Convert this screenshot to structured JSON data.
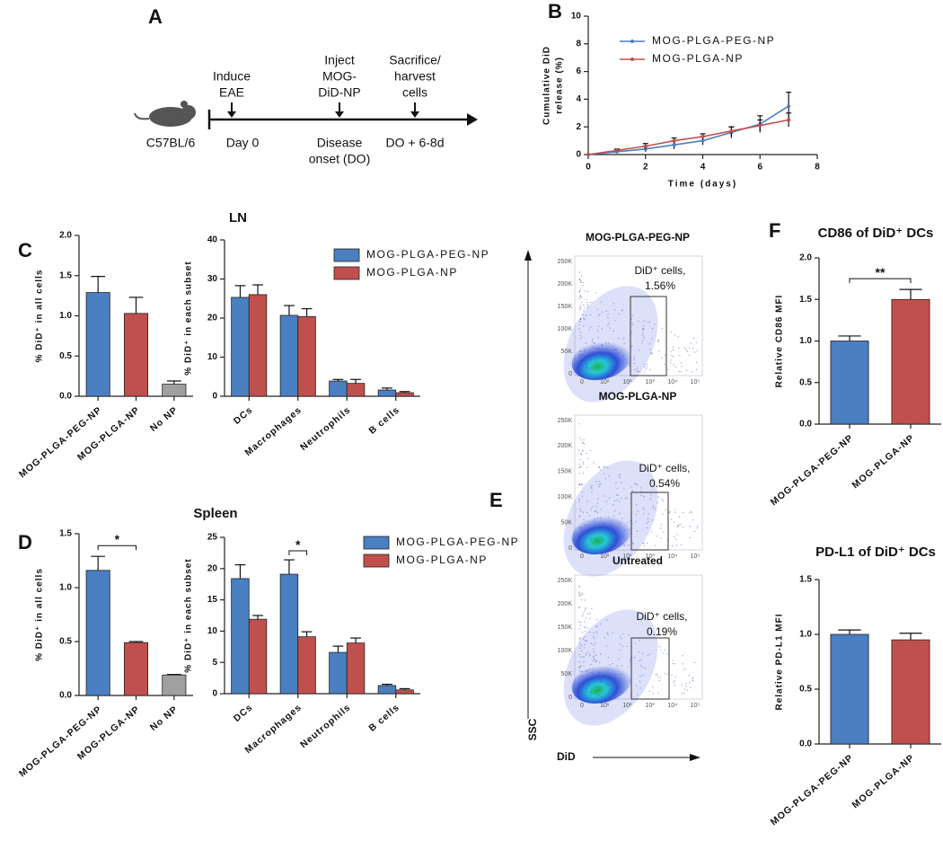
{
  "timeline": {
    "panel_label": "A",
    "strain": "C57BL/6",
    "events": [
      {
        "above": [
          "Induce",
          "EAE"
        ],
        "below": [
          "Day 0"
        ]
      },
      {
        "above": [
          "Inject",
          "MOG-",
          "DiD-NP"
        ],
        "below": [
          "Disease",
          "onset (DO)"
        ]
      },
      {
        "above": [
          "Sacrifice/",
          "harvest",
          "cells"
        ],
        "below": [
          "DO + 6-8d"
        ]
      }
    ]
  },
  "flow": {
    "panel_label": "E",
    "y_label": "SSC",
    "x_label": "DiD",
    "yticks": [
      "0",
      "50K",
      "100K",
      "150K",
      "200K",
      "250K"
    ],
    "xticks": [
      "0",
      "10¹",
      "10²",
      "10³",
      "10⁴",
      "10⁵"
    ],
    "panels": [
      {
        "title": "MOG-PLGA-PEG-NP",
        "gate_label": "DiD⁺ cells,",
        "gate_value": "1.56%"
      },
      {
        "title": "MOG-PLGA-NP",
        "gate_label": "DiD⁺ cells,",
        "gate_value": "0.54%"
      },
      {
        "title": "Untreated",
        "gate_label": "DiD⁺ cells,",
        "gate_value": "0.19%"
      }
    ]
  },
  "chart_data": [
    {
      "type": "line",
      "panel_label": "B",
      "x_label": "Time (days)",
      "y_label": [
        "Cumulative DiD",
        "release (%)"
      ],
      "x": [
        0,
        1,
        2,
        3,
        4,
        5,
        6,
        7
      ],
      "series": [
        {
          "name": "MOG-PLGA-PEG-NP",
          "color": "#4a7fc1",
          "values": [
            0,
            0.2,
            0.4,
            0.7,
            1.0,
            1.6,
            2.2,
            3.5
          ],
          "errors": [
            0,
            0.1,
            0.2,
            0.3,
            0.3,
            0.4,
            0.6,
            1.0
          ]
        },
        {
          "name": "MOG-PLGA-NP",
          "color": "#c0504d",
          "values": [
            0,
            0.3,
            0.6,
            1.0,
            1.3,
            1.7,
            2.1,
            2.5
          ],
          "errors": [
            0,
            0.1,
            0.2,
            0.2,
            0.2,
            0.3,
            0.4,
            0.5
          ]
        }
      ],
      "xlim": [
        0,
        8
      ],
      "xticks": [
        0,
        2,
        4,
        6,
        8
      ],
      "ylim": [
        0,
        10
      ],
      "yticks": [
        0,
        2,
        4,
        6,
        8,
        10
      ]
    },
    {
      "type": "bar",
      "panel_label": "C",
      "section_title": "LN",
      "y_label": "% DiD⁺ in all cells",
      "categories": [
        "MOG-PLGA-PEG-NP",
        "MOG-PLGA-NP",
        "No NP"
      ],
      "values": [
        1.29,
        1.03,
        0.15
      ],
      "errors": [
        0.2,
        0.2,
        0.04
      ],
      "colors": [
        "#4a7fc1",
        "#c0504d",
        "#a0a0a0"
      ],
      "ylim": [
        0,
        2
      ],
      "yticks": [
        {
          "value": 0,
          "label": "0.0"
        },
        0.5,
        {
          "value": 1,
          "label": "1.0"
        },
        1.5,
        {
          "value": 2,
          "label": "2.0"
        }
      ]
    },
    {
      "type": "grouped_bar",
      "y_label": "% DiD⁺ in each subset",
      "categories": [
        "DCs",
        "Macrophages",
        "Neutrophils",
        "B cells"
      ],
      "series": [
        {
          "name": "MOG-PLGA-PEG-NP",
          "color": "#4a7fc1",
          "values": [
            25.3,
            20.7,
            3.9,
            1.6
          ],
          "errors": [
            3,
            2.5,
            0.4,
            0.5
          ]
        },
        {
          "name": "MOG-PLGA-NP",
          "color": "#c0504d",
          "values": [
            26,
            20.4,
            3.3,
            0.9
          ],
          "errors": [
            2.5,
            2,
            1,
            0.3
          ]
        }
      ],
      "ylim": [
        0,
        40
      ],
      "yticks": [
        0,
        10,
        20,
        30,
        40
      ]
    },
    {
      "type": "bar",
      "panel_label": "D",
      "section_title": "Spleen",
      "y_label": "% DiD⁺ in all cells",
      "categories": [
        "MOG-PLGA-PEG-NP",
        "MOG-PLGA-NP",
        "No NP"
      ],
      "values": [
        1.16,
        0.49,
        0.19
      ],
      "errors": [
        0.13,
        0.01,
        0.005
      ],
      "colors": [
        "#4a7fc1",
        "#c0504d",
        "#a0a0a0"
      ],
      "ylim": [
        0,
        1.5
      ],
      "yticks": [
        {
          "value": 0,
          "label": "0.0"
        },
        0.5,
        {
          "value": 1,
          "label": "1.0"
        },
        1.5
      ],
      "annotation": {
        "text": "*",
        "between": [
          "MOG-PLGA-PEG-NP",
          "MOG-PLGA-NP"
        ]
      }
    },
    {
      "type": "grouped_bar",
      "y_label": "% DiD⁺ in each subset",
      "categories": [
        "DCs",
        "Macrophages",
        "Neutrophils",
        "B cells"
      ],
      "series": [
        {
          "name": "MOG-PLGA-PEG-NP",
          "color": "#4a7fc1",
          "values": [
            18.4,
            19.1,
            6.6,
            1.3
          ],
          "errors": [
            2.2,
            2.3,
            1,
            0.2
          ]
        },
        {
          "name": "MOG-PLGA-NP",
          "color": "#c0504d",
          "values": [
            11.9,
            9.1,
            8.1,
            0.6
          ],
          "errors": [
            0.6,
            0.8,
            0.8,
            0.2
          ]
        }
      ],
      "ylim": [
        0,
        25
      ],
      "yticks": [
        0,
        5,
        10,
        15,
        20,
        25
      ],
      "annotation": {
        "text": "*",
        "category": "Macrophages"
      }
    },
    {
      "type": "bar",
      "panel_label": "F",
      "title": "CD86 of DiD⁺ DCs",
      "y_label": "Relative CD86 MFI",
      "categories": [
        "MOG-PLGA-PEG-NP",
        "MOG-PLGA-NP"
      ],
      "values": [
        1.0,
        1.5
      ],
      "errors": [
        0.06,
        0.12
      ],
      "colors": [
        "#4a7fc1",
        "#c0504d"
      ],
      "ylim": [
        0,
        2
      ],
      "yticks": [
        {
          "value": 0,
          "label": "0.0"
        },
        0.5,
        {
          "value": 1,
          "label": "1.0"
        },
        1.5,
        {
          "value": 2,
          "label": "2.0"
        }
      ],
      "annotation": {
        "text": "**",
        "between": [
          "MOG-PLGA-PEG-NP",
          "MOG-PLGA-NP"
        ]
      }
    },
    {
      "type": "bar",
      "title": "PD-L1 of DiD⁺ DCs",
      "y_label": "Relative PD-L1 MFI",
      "categories": [
        "MOG-PLGA-PEG-NP",
        "MOG-PLGA-NP"
      ],
      "values": [
        1.0,
        0.95
      ],
      "errors": [
        0.04,
        0.06
      ],
      "colors": [
        "#4a7fc1",
        "#c0504d"
      ],
      "ylim": [
        0,
        1.5
      ],
      "yticks": [
        {
          "value": 0,
          "label": "0.0"
        },
        0.5,
        {
          "value": 1,
          "label": "1.0"
        },
        1.5
      ]
    }
  ]
}
